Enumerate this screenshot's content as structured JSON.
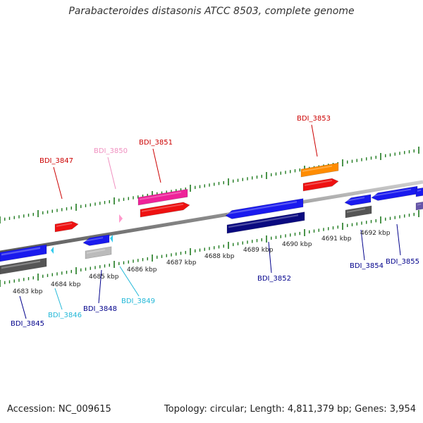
{
  "title": "Parabacteroides distasonis ATCC 8503, complete genome",
  "accession": "Accession: NC_009615",
  "summary": "Topology: circular; Length: 4,811,379 bp; Genes: 3,954",
  "scale_labels": [
    "4683 kbp",
    "4684 kbp",
    "4685 kbp",
    "4686 kbp",
    "4687 kbp",
    "4688 kbp",
    "4689 kbp",
    "4690 kbp",
    "4691 kbp",
    "4692 kbp"
  ],
  "genes": [
    {
      "label": "BDI_3845",
      "color": "#00008b"
    },
    {
      "label": "BDI_3846",
      "color": "#22b8d8"
    },
    {
      "label": "BDI_3847",
      "color": "#cc0000"
    },
    {
      "label": "BDI_3848",
      "color": "#00008b"
    },
    {
      "label": "BDI_3849",
      "color": "#22b8d8"
    },
    {
      "label": "BDI_3850",
      "color": "#f090c0"
    },
    {
      "label": "BDI_3851",
      "color": "#cc0000"
    },
    {
      "label": "BDI_3852",
      "color": "#00008b"
    },
    {
      "label": "BDI_3853",
      "color": "#cc0000"
    },
    {
      "label": "BDI_3854",
      "color": "#00008b"
    },
    {
      "label": "BDI_3855",
      "color": "#00008b"
    }
  ],
  "colors": {
    "backbone": "#8a8a8a",
    "tick_green": "#1e7a1e",
    "forward_red": "#ee1111",
    "reverse_blue": "#1a1aee",
    "pink": "#ee2299",
    "orange": "#ff8c00",
    "navy": "#0a0a80",
    "dark_gray": "#555555",
    "light_gray": "#bbbbbb",
    "cyan": "#33ccee",
    "light_pink": "#ff99cc",
    "purple": "#6655aa"
  }
}
